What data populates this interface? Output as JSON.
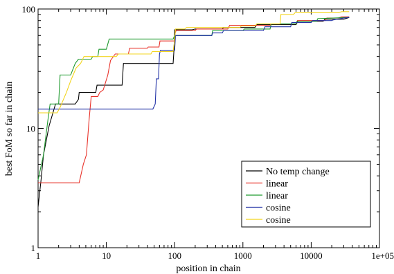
{
  "chart_data": {
    "type": "line",
    "title": "",
    "xlabel": "position in chain",
    "ylabel": "best FoM so far in chain",
    "xscale": "log",
    "yscale": "log",
    "xlim": [
      1,
      100000
    ],
    "ylim": [
      1,
      100
    ],
    "x_ticks": [
      {
        "value": 1,
        "label": "1"
      },
      {
        "value": 10,
        "label": "10"
      },
      {
        "value": 100,
        "label": "100"
      },
      {
        "value": 1000,
        "label": "1000"
      },
      {
        "value": 10000,
        "label": "10000"
      },
      {
        "value": 100000,
        "label": "1e+05"
      }
    ],
    "y_ticks": [
      {
        "value": 1,
        "label": "1"
      },
      {
        "value": 10,
        "label": "10"
      },
      {
        "value": 100,
        "label": "100"
      }
    ],
    "grid": false,
    "legend_position": "bottom-right",
    "series": [
      {
        "name": "No temp change",
        "color": "#000000",
        "points": [
          [
            1,
            2.2
          ],
          [
            1.1,
            3.6
          ],
          [
            1.2,
            6.0
          ],
          [
            1.45,
            10.5
          ],
          [
            1.8,
            16
          ],
          [
            3.5,
            16
          ],
          [
            3.9,
            17.5
          ],
          [
            4.0,
            20
          ],
          [
            7.0,
            20
          ],
          [
            7.3,
            23
          ],
          [
            17,
            23
          ],
          [
            17.8,
            35
          ],
          [
            95,
            35
          ],
          [
            98,
            46
          ],
          [
            100,
            67
          ],
          [
            180,
            67
          ],
          [
            200,
            68
          ],
          [
            500,
            68
          ],
          [
            520,
            70
          ],
          [
            1500,
            70
          ],
          [
            1600,
            74
          ],
          [
            6000,
            74
          ],
          [
            6400,
            79
          ],
          [
            15000,
            79
          ],
          [
            15800,
            82
          ],
          [
            30000,
            82
          ],
          [
            36000,
            85
          ]
        ]
      },
      {
        "name": "linear",
        "color": "#e8322a",
        "points": [
          [
            1,
            3.5
          ],
          [
            4.0,
            3.5
          ],
          [
            4.6,
            5.0
          ],
          [
            5.1,
            6.0
          ],
          [
            5.6,
            12
          ],
          [
            6.0,
            18.5
          ],
          [
            7.5,
            18.5
          ],
          [
            8.0,
            20
          ],
          [
            9.0,
            21
          ],
          [
            10.5,
            28
          ],
          [
            11.5,
            37
          ],
          [
            13.5,
            42
          ],
          [
            21,
            42
          ],
          [
            22,
            47
          ],
          [
            40,
            47
          ],
          [
            41,
            48
          ],
          [
            59,
            48
          ],
          [
            61,
            54
          ],
          [
            100,
            54
          ],
          [
            102,
            63
          ],
          [
            105,
            66
          ],
          [
            200,
            66
          ],
          [
            210,
            68
          ],
          [
            600,
            68
          ],
          [
            640,
            73
          ],
          [
            2500,
            73
          ],
          [
            2600,
            75
          ],
          [
            6000,
            75
          ],
          [
            6300,
            80
          ],
          [
            16000,
            80
          ],
          [
            17000,
            84
          ],
          [
            25000,
            84
          ],
          [
            28000,
            86
          ],
          [
            36000,
            86
          ]
        ]
      },
      {
        "name": "linear",
        "color": "#1f9a2f",
        "points": [
          [
            1,
            3.7
          ],
          [
            1.2,
            6.0
          ],
          [
            1.4,
            12
          ],
          [
            1.5,
            16
          ],
          [
            2.0,
            16
          ],
          [
            2.1,
            28
          ],
          [
            3.0,
            28
          ],
          [
            3.5,
            35
          ],
          [
            3.9,
            38
          ],
          [
            6.0,
            38
          ],
          [
            6.3,
            40
          ],
          [
            7.5,
            40
          ],
          [
            7.8,
            46
          ],
          [
            10,
            46
          ],
          [
            11,
            56
          ],
          [
            95,
            56
          ],
          [
            100,
            60
          ],
          [
            350,
            60
          ],
          [
            360,
            66
          ],
          [
            1000,
            66
          ],
          [
            1050,
            68
          ],
          [
            2500,
            68
          ],
          [
            2600,
            75
          ],
          [
            6000,
            75
          ],
          [
            6200,
            79
          ],
          [
            12000,
            79
          ],
          [
            12500,
            83
          ],
          [
            36000,
            85
          ]
        ]
      },
      {
        "name": "cosine",
        "color": "#2232a6",
        "points": [
          [
            1,
            14.5
          ],
          [
            48,
            14.5
          ],
          [
            52,
            16
          ],
          [
            54,
            26
          ],
          [
            58,
            26
          ],
          [
            60,
            42
          ],
          [
            62,
            45
          ],
          [
            70,
            45
          ],
          [
            100,
            45
          ],
          [
            103,
            60
          ],
          [
            350,
            60
          ],
          [
            360,
            63
          ],
          [
            500,
            63
          ],
          [
            520,
            66
          ],
          [
            2000,
            66
          ],
          [
            2100,
            71
          ],
          [
            5000,
            71
          ],
          [
            5200,
            77
          ],
          [
            10000,
            77
          ],
          [
            10500,
            80
          ],
          [
            20000,
            80
          ],
          [
            21000,
            81
          ],
          [
            30000,
            84
          ],
          [
            36000,
            85
          ]
        ]
      },
      {
        "name": "cosine",
        "color": "#f3d51f",
        "points": [
          [
            1,
            13.5
          ],
          [
            1.9,
            13.5
          ],
          [
            2.1,
            15
          ],
          [
            2.6,
            20
          ],
          [
            3.0,
            25
          ],
          [
            3.6,
            32
          ],
          [
            4.2,
            35
          ],
          [
            4.7,
            40
          ],
          [
            14,
            40
          ],
          [
            15,
            42
          ],
          [
            45,
            42
          ],
          [
            47,
            44
          ],
          [
            95,
            44
          ],
          [
            100,
            55
          ],
          [
            103,
            68
          ],
          [
            140,
            68
          ],
          [
            150,
            70
          ],
          [
            900,
            70
          ],
          [
            950,
            72
          ],
          [
            1500,
            72
          ],
          [
            1600,
            75
          ],
          [
            3500,
            75
          ],
          [
            3600,
            90
          ],
          [
            5500,
            90
          ],
          [
            5800,
            93
          ],
          [
            25000,
            93
          ],
          [
            28000,
            95
          ],
          [
            36000,
            95
          ]
        ]
      }
    ]
  }
}
